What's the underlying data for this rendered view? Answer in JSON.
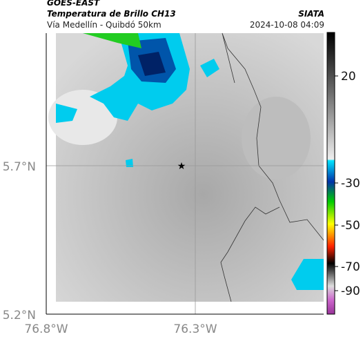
{
  "header": {
    "source": "GOES-EAST",
    "product": "Temperatura de Brillo CH13",
    "route": "Vía Medellín - Quibdó 50km",
    "agency": "SIATA",
    "timestamp": "2024-10-08 04:09"
  },
  "axes": {
    "lat_labels": [
      "5.7°N",
      "5.2°N"
    ],
    "lon_labels": [
      "76.8°W",
      "76.3°W"
    ]
  },
  "colorbar": {
    "ticks": [
      20,
      -30,
      -50,
      -70,
      -90
    ]
  }
}
